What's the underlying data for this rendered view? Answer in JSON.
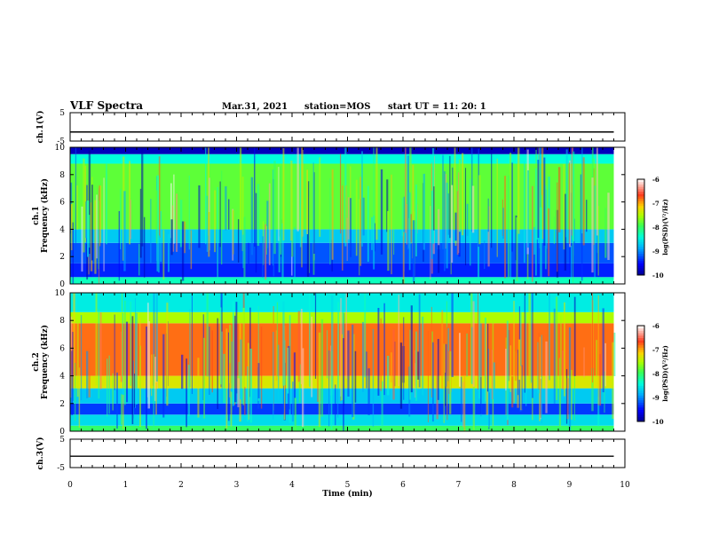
{
  "header": {
    "title": "VLF Spectra",
    "date": "Mar.31, 2021",
    "station": "station=MOS",
    "start": "start UT =   11: 20: 1"
  },
  "chart_data": [
    {
      "type": "line",
      "panel": "ch1-voltage",
      "ylabel": "ch.1(V)",
      "ylim": [
        -5,
        5
      ],
      "yticks": [
        "5",
        "-5"
      ],
      "xlim": [
        0,
        10
      ],
      "series": [
        {
          "x": [
            0,
            9.8
          ],
          "values": [
            -1.8,
            -1.8
          ]
        }
      ]
    },
    {
      "type": "heatmap",
      "panel": "ch1-spectrogram",
      "ylabel": "ch.1\nFrequency (kHz)",
      "ylim": [
        0,
        10
      ],
      "yticks": [
        "0",
        "2",
        "4",
        "6",
        "8",
        "10"
      ],
      "xlim": [
        0,
        10
      ],
      "x_extent": 9.8,
      "bands": [
        {
          "from": 0,
          "to": 0.5,
          "level": -8.3
        },
        {
          "from": 0.5,
          "to": 1.5,
          "level": -9.4
        },
        {
          "from": 1.5,
          "to": 3.0,
          "level": -9.2
        },
        {
          "from": 3.0,
          "to": 4.0,
          "level": -8.7
        },
        {
          "from": 4.0,
          "to": 8.8,
          "level": -7.8
        },
        {
          "from": 8.8,
          "to": 9.5,
          "level": -8.4
        },
        {
          "from": 9.5,
          "to": 10,
          "level": -9.8
        }
      ],
      "colorbar": {
        "label": "log(PSD)(V²/Hz)",
        "range": [
          -10,
          -6
        ],
        "ticks": [
          "-6",
          "-7",
          "-8",
          "-9",
          "-10"
        ]
      }
    },
    {
      "type": "heatmap",
      "panel": "ch2-spectrogram",
      "ylabel": "ch.2\nFrequency (kHz)",
      "ylim": [
        0,
        10
      ],
      "yticks": [
        "0",
        "2",
        "4",
        "6",
        "8",
        "10"
      ],
      "xlim": [
        0,
        10
      ],
      "x_extent": 9.8,
      "bands": [
        {
          "from": 0,
          "to": 0.4,
          "level": -8.0
        },
        {
          "from": 0.4,
          "to": 1.2,
          "level": -8.6
        },
        {
          "from": 1.2,
          "to": 2.0,
          "level": -9.3
        },
        {
          "from": 2.0,
          "to": 3.1,
          "level": -8.7
        },
        {
          "from": 3.1,
          "to": 4.0,
          "level": -7.3
        },
        {
          "from": 4.0,
          "to": 7.8,
          "level": -6.8
        },
        {
          "from": 7.8,
          "to": 8.6,
          "level": -7.5
        },
        {
          "from": 8.6,
          "to": 10,
          "level": -8.5
        }
      ],
      "colorbar": {
        "label": "log(PSD)(V²/Hz)",
        "range": [
          -10,
          -6
        ],
        "ticks": [
          "-6",
          "-7",
          "-8",
          "-9",
          "-10"
        ]
      }
    },
    {
      "type": "line",
      "panel": "ch3-voltage",
      "ylabel": "ch.3(V)",
      "ylim": [
        -5,
        5
      ],
      "yticks": [
        "5",
        "-5"
      ],
      "xlim": [
        0,
        10
      ],
      "xlabel": "Time (min)",
      "xticks": [
        "0",
        "1",
        "2",
        "3",
        "4",
        "5",
        "6",
        "7",
        "8",
        "9",
        "10"
      ],
      "series": [
        {
          "x": [
            0,
            9.8
          ],
          "values": [
            -1.0,
            -1.0
          ]
        }
      ]
    }
  ]
}
